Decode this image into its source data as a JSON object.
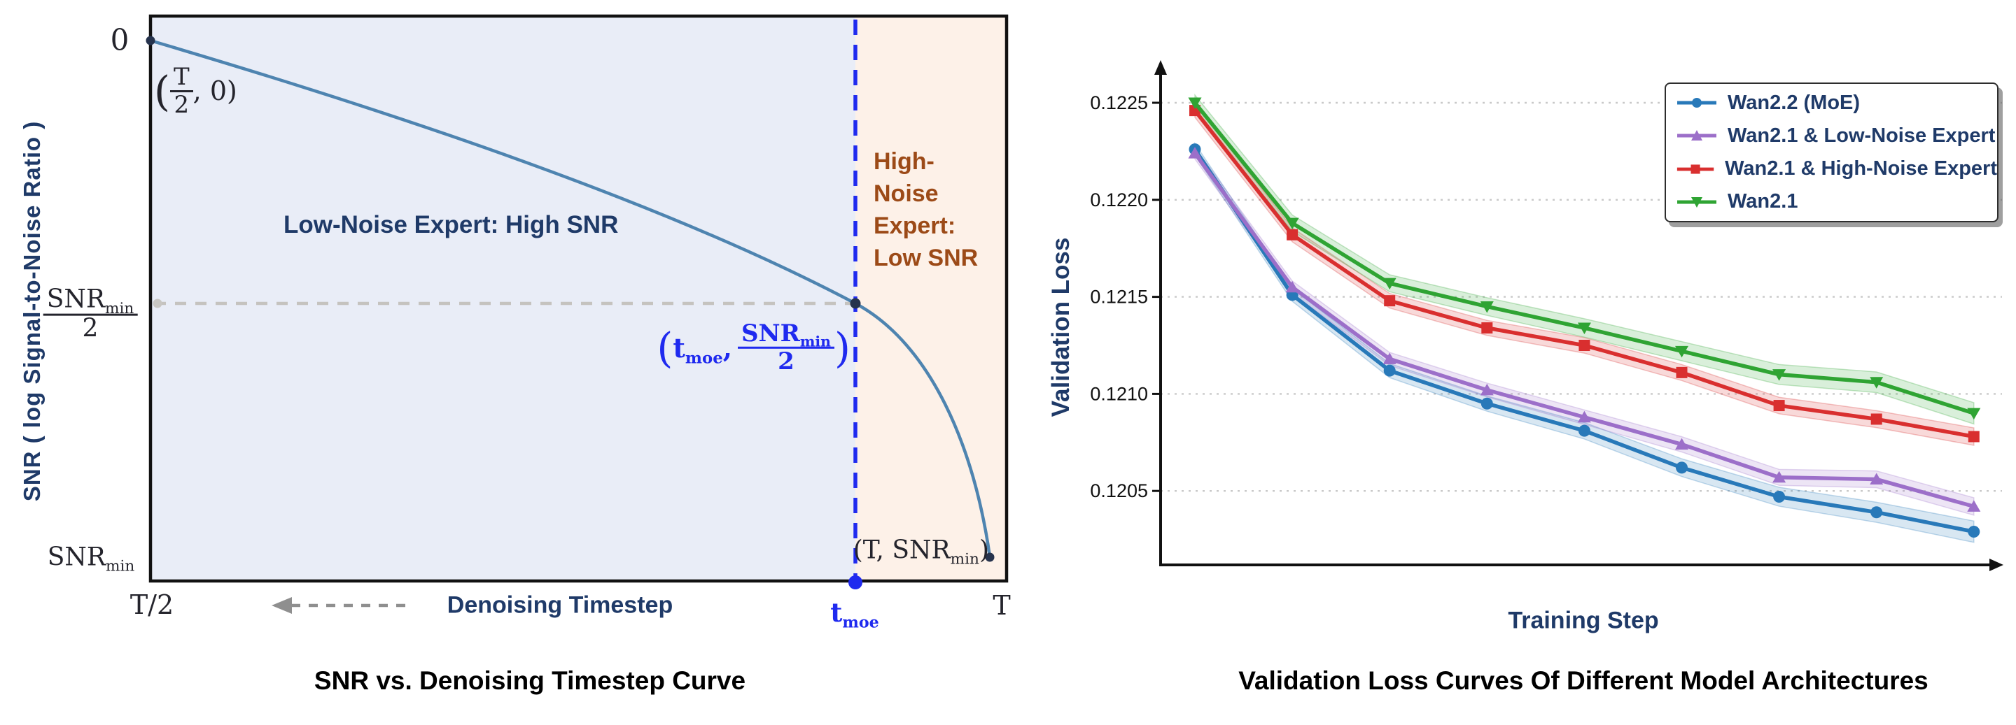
{
  "figure_titles": {
    "left": "SNR vs. Denoising Timestep Curve",
    "right": "Validation Loss Curves Of Different Model Architectures"
  },
  "left_chart": {
    "y_axis_label": "SNR ( log Signal-to-Noise Ratio )",
    "x_axis_label": "Denoising Timestep",
    "region_low_label": "Low-Noise Expert: High SNR",
    "region_high_lines": [
      "High-",
      "Noise",
      "Expert:",
      "Low SNR"
    ],
    "y_tick_top": "0",
    "x_tick_left": "T/2",
    "x_tick_right": "T",
    "snr_text": "SNR",
    "min_text": "min",
    "two_text": "2",
    "T_text": "T",
    "t_text": "t",
    "moe_text": "moe",
    "open_paren": "(",
    "close_paren": ")",
    "comma": ",",
    "comma_zero": ", 0)",
    "end_point_head": "(T, "
  },
  "right_chart": {
    "y_axis_label": "Validation Loss",
    "x_axis_label": "Training Step"
  },
  "colors": {
    "region_low": "#e9edf7",
    "region_high": "#fdf1e8",
    "curve": "#4e84b0",
    "divider_blue": "#1f2aef",
    "dashed_gray": "#c5c3bf",
    "arrow_gray": "#8f8f8f",
    "axis_black": "#111111",
    "navy": "#1f3a68",
    "brown": "#9c4a17",
    "dot": "#26334d",
    "grid": "#c9c9c9",
    "series_blue": "#2879b9",
    "series_purple": "#9c6fc9",
    "series_red": "#d92f2f",
    "series_green": "#2fa433"
  },
  "chart_data": [
    {
      "type": "line",
      "title": "SNR vs. Denoising Timestep Curve",
      "xlabel": "Denoising Timestep",
      "ylabel": "SNR ( log Signal-to-Noise Ratio )",
      "x_ticks": [
        "T/2",
        "t_moe",
        "T"
      ],
      "y_ticks": [
        "0",
        "SNR_min/2",
        "SNR_min"
      ],
      "key_points": [
        {
          "x": "T/2",
          "y": "0",
          "label": "(T/2, 0)"
        },
        {
          "x": "t_moe",
          "y": "SNR_min/2",
          "label": "(t_moe, SNR_min/2)"
        },
        {
          "x": "T",
          "y": "SNR_min",
          "label": "(T, SNR_min)"
        }
      ],
      "regions": [
        {
          "label": "Low-Noise Expert: High SNR",
          "range": "T/2 to t_moe"
        },
        {
          "label": "High-Noise Expert: Low SNR",
          "range": "t_moe to T"
        }
      ],
      "grid": false,
      "legend_position": "none",
      "note": "Schematic: SNR decreases monotonically from 0 at T/2 to SNR_min at T; t_moe marks SNR_min/2 boundary between experts"
    },
    {
      "type": "line",
      "title": "Validation Loss Curves Of Different Model Architectures",
      "xlabel": "Training Step",
      "ylabel": "Validation Loss",
      "x": [
        1,
        2,
        3,
        4,
        5,
        6,
        7,
        8,
        9
      ],
      "x_tick_labels": [],
      "y_ticks": [
        "0.1225",
        "0.1220",
        "0.1215",
        "0.1210",
        "0.1205"
      ],
      "y_tick_values": [
        0.1225,
        0.122,
        0.1215,
        0.121,
        0.1205
      ],
      "ylim": [
        0.1202,
        0.1227
      ],
      "grid": "dotted-horizontal",
      "legend_position": "upper right",
      "series": [
        {
          "name": "Wan2.2 (MoE)",
          "color": "#2879b9",
          "marker": "circle",
          "values": [
            0.12226,
            0.12151,
            0.12112,
            0.12095,
            0.12081,
            0.12062,
            0.12047,
            0.12039,
            0.12029
          ],
          "band_start": 3e-05,
          "band_end": 5.5e-05
        },
        {
          "name": "Wan2.1 & Low-Noise Expert",
          "color": "#9c6fc9",
          "marker": "triangle-up",
          "values": [
            0.12224,
            0.12155,
            0.12118,
            0.12102,
            0.12088,
            0.12074,
            0.12057,
            0.12056,
            0.12042
          ],
          "band_start": 3e-05,
          "band_end": 4.5e-05
        },
        {
          "name": "Wan2.1 & High-Noise Expert",
          "color": "#d92f2f",
          "marker": "square",
          "values": [
            0.12246,
            0.12182,
            0.12148,
            0.12134,
            0.12125,
            0.12111,
            0.12094,
            0.12087,
            0.12078
          ],
          "band_start": 3.5e-05,
          "band_end": 4.5e-05
        },
        {
          "name": "Wan2.1",
          "color": "#2fa433",
          "marker": "triangle-down",
          "values": [
            0.1225,
            0.12188,
            0.12157,
            0.12145,
            0.12134,
            0.12122,
            0.1211,
            0.12106,
            0.1209
          ],
          "band_start": 4e-05,
          "band_end": 5.5e-05
        }
      ]
    }
  ]
}
